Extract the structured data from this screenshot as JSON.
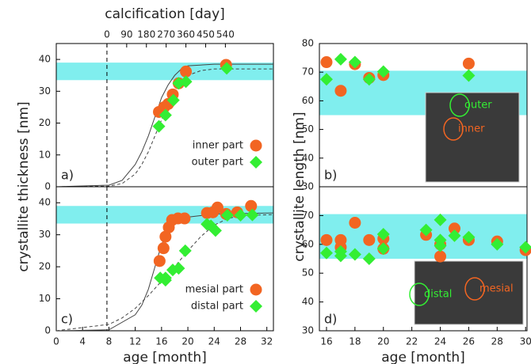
{
  "chart_data": [
    {
      "type": "scatter",
      "panel_label": "a)",
      "ylabel": "crystallite thickness [nm]",
      "x2label": "calcification [day]",
      "xlim": [
        0,
        33
      ],
      "ylim": [
        0,
        45
      ],
      "yticks": [
        0,
        10,
        20,
        30,
        40
      ],
      "x2lim": [
        -231,
        759
      ],
      "x2ticks": [
        0,
        90,
        180,
        270,
        360,
        450,
        540
      ],
      "vline": 7.7,
      "band": [
        33.5,
        39
      ],
      "band_color": "#80eeee",
      "legend": "lower right",
      "series": [
        {
          "name": "inner part",
          "marker": "circle",
          "color": "#f26522",
          "x": [
            15.6,
            16.4,
            17,
            17.7,
            18.6,
            19.7,
            25.8
          ],
          "values": [
            23.5,
            25,
            26,
            29,
            32.5,
            36.2,
            38.3
          ]
        },
        {
          "name": "outer part",
          "marker": "diamond",
          "color": "#33ee33",
          "x": [
            15.6,
            16.6,
            17.8,
            18.6,
            19.7,
            25.9
          ],
          "values": [
            19,
            22.5,
            27.2,
            32.5,
            33,
            37.2
          ]
        },
        {
          "marker": "line",
          "color": "#444444",
          "x": [
            0,
            8,
            10,
            12,
            13,
            14,
            15,
            16,
            17,
            18,
            19,
            20,
            24,
            33
          ],
          "values": [
            0,
            0.5,
            2,
            7,
            11,
            16,
            22,
            28,
            32,
            35,
            37,
            38,
            38.5,
            38.5
          ]
        },
        {
          "marker": "dashed",
          "color": "#444444",
          "x": [
            0,
            8,
            10,
            12,
            13,
            14,
            15,
            16,
            17,
            18,
            19,
            20,
            22,
            24,
            33
          ],
          "values": [
            0,
            0.2,
            1,
            4,
            7,
            11,
            16,
            21,
            26,
            30,
            33,
            35,
            36.5,
            37,
            37
          ]
        }
      ]
    },
    {
      "type": "scatter",
      "panel_label": "b)",
      "ylabel": "crystallite length [nm]",
      "xlim": [
        15.5,
        30.1
      ],
      "ylim": [
        30,
        80
      ],
      "yticks": [
        30,
        40,
        50,
        60,
        70,
        80
      ],
      "band": [
        55,
        70.5
      ],
      "band_color": "#80eeee",
      "annotations": [
        {
          "text": "outer",
          "color": "#33ee33"
        },
        {
          "text": "inner",
          "color": "#f26522"
        }
      ],
      "series": [
        {
          "marker": "circle",
          "color": "#f26522",
          "x": [
            16,
            17,
            18,
            19,
            20,
            26
          ],
          "values": [
            73.5,
            63.5,
            72.8,
            68,
            69,
            73
          ]
        },
        {
          "marker": "diamond",
          "color": "#33ee33",
          "x": [
            16,
            17,
            18,
            19,
            20,
            26
          ],
          "values": [
            67.5,
            74.5,
            73.5,
            67.5,
            70.2,
            68.8
          ]
        }
      ]
    },
    {
      "type": "scatter",
      "panel_label": "c)",
      "xlabel": "age [month]",
      "xlim": [
        0,
        33
      ],
      "xticks": [
        0,
        4,
        8,
        12,
        16,
        20,
        24,
        28,
        32
      ],
      "ylim": [
        0,
        45
      ],
      "yticks": [
        0,
        10,
        20,
        30,
        40
      ],
      "vline": 7.7,
      "band": [
        33.5,
        39
      ],
      "band_color": "#80eeee",
      "legend": "lower right",
      "series": [
        {
          "name": "mesial part",
          "marker": "circle",
          "color": "#f26522",
          "x": [
            15.7,
            16.3,
            16.6,
            17.1,
            17.6,
            18.5,
            19.5,
            22.9,
            23.8,
            24.5,
            25.8,
            27.5,
            29.6
          ],
          "values": [
            21.8,
            25.8,
            29.4,
            32.3,
            34.6,
            35.1,
            35.1,
            36.8,
            37,
            38.5,
            36.5,
            37,
            39
          ]
        },
        {
          "name": "distal part",
          "marker": "diamond",
          "color": "#33ee33",
          "x": [
            15.8,
            16.6,
            16.6,
            17.7,
            18.6,
            19.6,
            22.9,
            23.5,
            24.2,
            26,
            28,
            29.8
          ],
          "values": [
            16.5,
            16.5,
            15.8,
            19,
            19.5,
            25,
            33.3,
            32.8,
            31.3,
            36.1,
            36.1,
            36.2
          ]
        },
        {
          "marker": "line",
          "color": "#444444",
          "x": [
            0,
            8,
            12,
            13,
            14,
            15,
            16,
            17,
            18,
            20,
            24,
            33
          ],
          "values": [
            0,
            0.3,
            5,
            8,
            13,
            20,
            27,
            31,
            33.5,
            35.5,
            36.5,
            36.8
          ]
        },
        {
          "marker": "dashed",
          "color": "#444444",
          "x": [
            0,
            4,
            8,
            10,
            12,
            14,
            16,
            18,
            20,
            22,
            24,
            26,
            28,
            33
          ],
          "values": [
            0,
            1,
            2,
            4,
            7,
            11,
            15.5,
            20,
            25,
            29.5,
            33,
            35,
            36,
            36.3
          ]
        }
      ]
    },
    {
      "type": "scatter",
      "panel_label": "d)",
      "xlabel": "age [month]",
      "xlim": [
        15.5,
        30.1
      ],
      "xticks": [
        16,
        18,
        20,
        22,
        24,
        26,
        28,
        30
      ],
      "ylim": [
        30,
        80
      ],
      "yticks": [
        30,
        40,
        50,
        60,
        70
      ],
      "band": [
        55,
        70.5
      ],
      "band_color": "#80eeee",
      "annotations": [
        {
          "text": "distal",
          "color": "#33ee33"
        },
        {
          "text": "mesial",
          "color": "#f26522"
        }
      ],
      "series": [
        {
          "marker": "circle",
          "color": "#f26522",
          "x": [
            16,
            17,
            17,
            18,
            19,
            20,
            20,
            23,
            24,
            24,
            25,
            26,
            28,
            30
          ],
          "values": [
            61.5,
            61.5,
            59,
            67.5,
            61.5,
            62,
            58.5,
            63.3,
            55.8,
            60,
            65.5,
            61.5,
            61,
            58
          ]
        },
        {
          "marker": "diamond",
          "color": "#33ee33",
          "x": [
            16,
            17,
            17,
            18,
            19,
            20,
            20,
            23,
            24,
            24,
            24,
            25,
            26,
            28,
            30
          ],
          "values": [
            57,
            57.5,
            56,
            56.5,
            55,
            63.5,
            58.5,
            65,
            61.5,
            68.5,
            59.5,
            63,
            62.5,
            60,
            59
          ]
        }
      ]
    }
  ]
}
